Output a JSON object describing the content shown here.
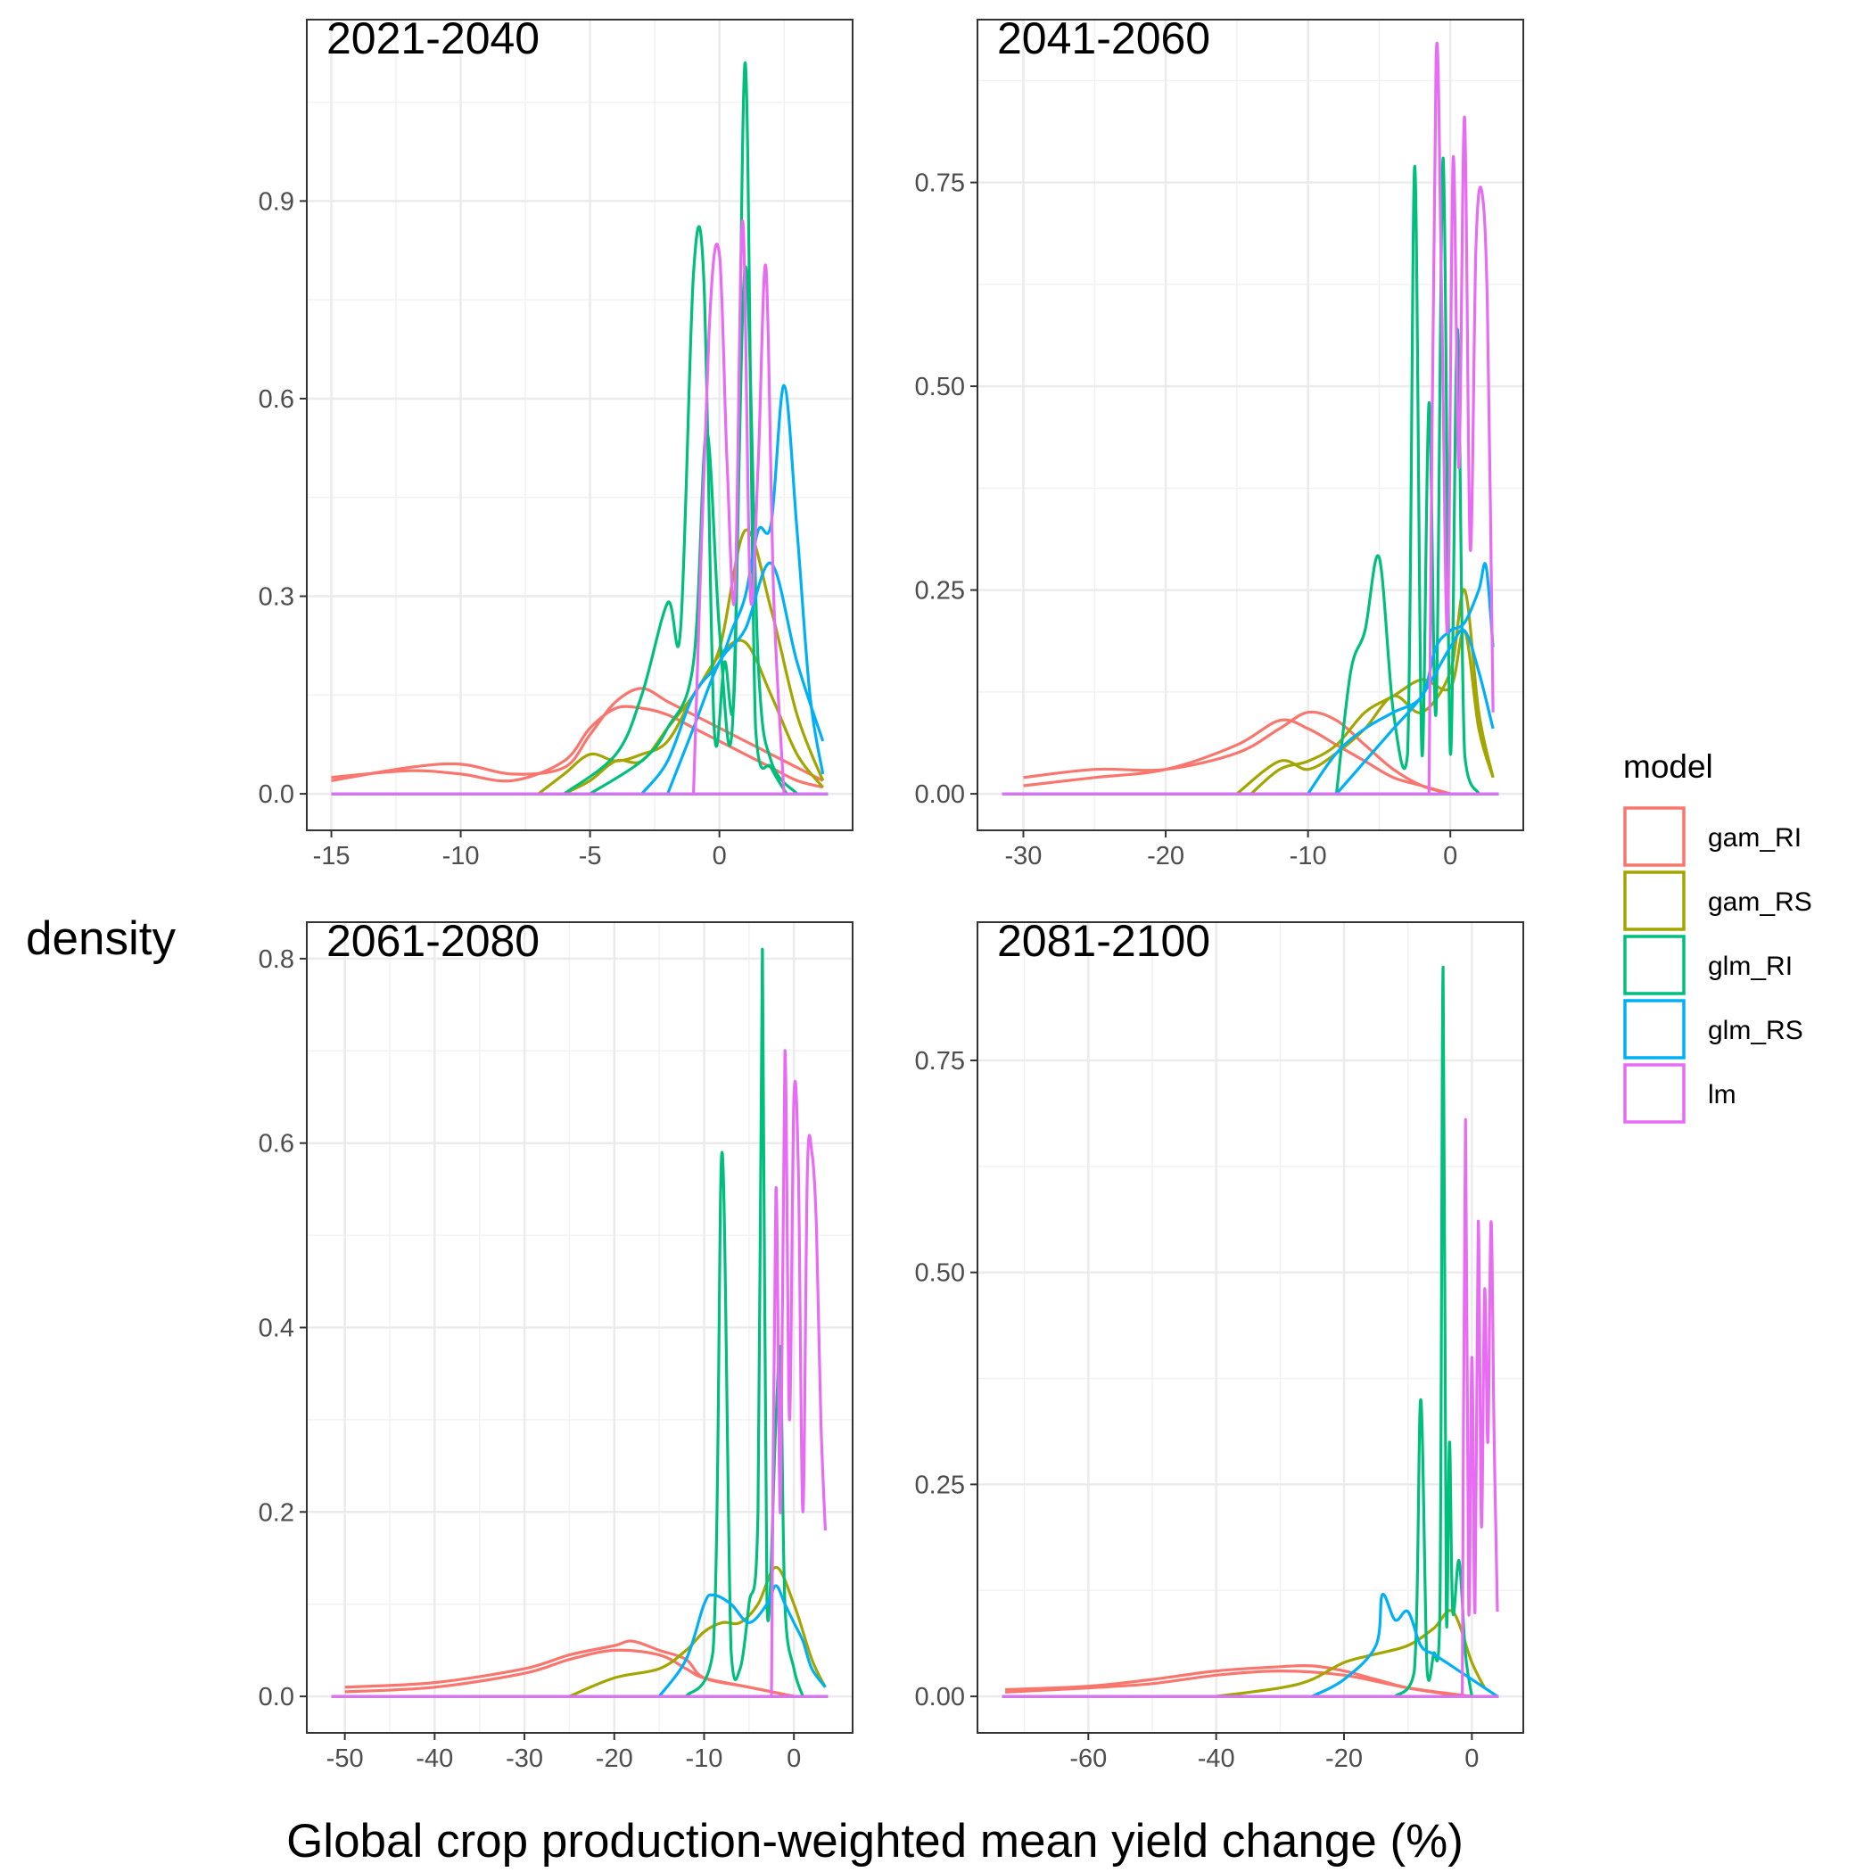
{
  "chart_data": {
    "type": "line",
    "xlabel": "Global crop production-weighted mean yield change (%)",
    "ylabel": "density",
    "legend": {
      "title": "model",
      "placement": "right",
      "entries": [
        {
          "name": "gam_RI",
          "color": "#F8766D"
        },
        {
          "name": "gam_RS",
          "color": "#A3A500"
        },
        {
          "name": "glm_RI",
          "color": "#00BF7D"
        },
        {
          "name": "glm_RS",
          "color": "#00B0F6"
        },
        {
          "name": "lm",
          "color": "#E76BF3"
        }
      ]
    },
    "grid": true,
    "panels": [
      {
        "label": "2021-2040",
        "xlim": [
          -15,
          4.2
        ],
        "ylim": [
          0,
          1.12
        ],
        "xticks": [
          -15,
          -10,
          -5,
          0
        ],
        "xtick_labels": [
          "-15",
          "-10",
          "-5",
          "0"
        ],
        "yticks": [
          0,
          0.3,
          0.6,
          0.9
        ],
        "ytick_labels": [
          "0.0",
          "0.3",
          "0.6",
          "0.9"
        ],
        "series": [
          {
            "model": "gam_RI",
            "x": [
              -15,
              -12,
              -10,
              -8,
              -6,
              -5,
              -4,
              -3,
              -2,
              -1,
              0,
              1,
              2,
              3,
              4
            ],
            "y": [
              0.02,
              0.04,
              0.045,
              0.03,
              0.04,
              0.09,
              0.14,
              0.16,
              0.14,
              0.12,
              0.1,
              0.08,
              0.06,
              0.04,
              0.02
            ]
          },
          {
            "model": "gam_RI",
            "x": [
              -15,
              -12,
              -10,
              -8,
              -6,
              -5,
              -4,
              -3,
              -2,
              -1,
              0,
              1,
              2,
              3,
              4
            ],
            "y": [
              0.025,
              0.035,
              0.03,
              0.02,
              0.05,
              0.1,
              0.13,
              0.13,
              0.12,
              0.1,
              0.08,
              0.06,
              0.04,
              0.02,
              0.01
            ]
          },
          {
            "model": "gam_RS",
            "x": [
              -7,
              -6,
              -5,
              -4,
              -3,
              -2,
              -1,
              0,
              1,
              2,
              3,
              4
            ],
            "y": [
              0.0,
              0.03,
              0.06,
              0.05,
              0.06,
              0.08,
              0.15,
              0.22,
              0.4,
              0.28,
              0.12,
              0.02
            ]
          },
          {
            "model": "gam_RS",
            "x": [
              -6,
              -5,
              -4,
              -3,
              -2,
              -1,
              0,
              1,
              2,
              3,
              4
            ],
            "y": [
              0.0,
              0.02,
              0.05,
              0.05,
              0.1,
              0.15,
              0.21,
              0.23,
              0.15,
              0.06,
              0.01
            ]
          },
          {
            "model": "glm_RI",
            "x": [
              -6,
              -4,
              -3,
              -2,
              -1.5,
              -1,
              -0.6,
              -0.2,
              0.2,
              0.6,
              1.0,
              1.4,
              2.0,
              2.6
            ],
            "y": [
              0.0,
              0.06,
              0.15,
              0.29,
              0.25,
              0.79,
              0.78,
              0.1,
              0.2,
              0.18,
              1.11,
              0.1,
              0.04,
              0.0
            ]
          },
          {
            "model": "glm_RI",
            "x": [
              -5,
              -3,
              -2,
              -1,
              -0.5,
              0,
              0.5,
              1,
              1.5,
              2,
              3
            ],
            "y": [
              0.0,
              0.05,
              0.1,
              0.2,
              0.55,
              0.25,
              0.1,
              0.8,
              0.2,
              0.05,
              0.0
            ]
          },
          {
            "model": "glm_RS",
            "x": [
              -3,
              -2,
              -1,
              0,
              0.5,
              1,
              1.5,
              2,
              2.5,
              3,
              3.5,
              4
            ],
            "y": [
              0.0,
              0.05,
              0.15,
              0.2,
              0.25,
              0.3,
              0.4,
              0.41,
              0.62,
              0.4,
              0.15,
              0.03
            ]
          },
          {
            "model": "glm_RS",
            "x": [
              -2,
              -1,
              0,
              1,
              2,
              3,
              4
            ],
            "y": [
              0.0,
              0.1,
              0.2,
              0.25,
              0.35,
              0.2,
              0.08
            ]
          },
          {
            "model": "lm",
            "x": [
              -1,
              -0.4,
              0,
              0.3,
              0.6,
              0.9,
              1.2,
              1.5,
              1.8,
              2.1,
              2.5
            ],
            "y": [
              0.0,
              0.7,
              0.82,
              0.5,
              0.3,
              0.87,
              0.3,
              0.5,
              0.8,
              0.3,
              0.0
            ]
          }
        ]
      },
      {
        "label": "2041-2060",
        "xlim": [
          -31.5,
          3.4
        ],
        "ylim": [
          0,
          0.905
        ],
        "xticks": [
          -30,
          -20,
          -10,
          0
        ],
        "xtick_labels": [
          "-30",
          "-20",
          "-10",
          "0"
        ],
        "yticks": [
          0,
          0.25,
          0.5,
          0.75
        ],
        "ytick_labels": [
          "0.00",
          "0.25",
          "0.50",
          "0.75"
        ],
        "series": [
          {
            "model": "gam_RI",
            "x": [
              -30,
              -25,
              -20,
              -15,
              -12,
              -10,
              -8,
              -6,
              -4,
              -2,
              0
            ],
            "y": [
              0.02,
              0.03,
              0.03,
              0.05,
              0.08,
              0.1,
              0.09,
              0.06,
              0.03,
              0.01,
              0.0
            ]
          },
          {
            "model": "gam_RI",
            "x": [
              -30,
              -25,
              -20,
              -15,
              -12,
              -10,
              -8,
              -6,
              -4,
              -2,
              0
            ],
            "y": [
              0.01,
              0.02,
              0.03,
              0.06,
              0.09,
              0.08,
              0.06,
              0.04,
              0.02,
              0.01,
              0.0
            ]
          },
          {
            "model": "gam_RS",
            "x": [
              -15,
              -12,
              -10,
              -8,
              -6,
              -4,
              -2,
              0,
              1,
              2,
              3
            ],
            "y": [
              0.0,
              0.04,
              0.03,
              0.05,
              0.08,
              0.12,
              0.1,
              0.15,
              0.25,
              0.1,
              0.02
            ]
          },
          {
            "model": "gam_RS",
            "x": [
              -14,
              -12,
              -10,
              -8,
              -6,
              -4,
              -2,
              0,
              1,
              2,
              3
            ],
            "y": [
              0.0,
              0.03,
              0.04,
              0.06,
              0.1,
              0.12,
              0.14,
              0.13,
              0.2,
              0.08,
              0.02
            ]
          },
          {
            "model": "glm_RI",
            "x": [
              -8,
              -7,
              -6,
              -5,
              -4,
              -3,
              -2.5,
              -2,
              -1.5,
              -1,
              -0.5,
              0,
              0.5,
              1,
              2
            ],
            "y": [
              0.0,
              0.15,
              0.2,
              0.29,
              0.1,
              0.05,
              0.77,
              0.05,
              0.48,
              0.1,
              0.78,
              0.05,
              0.57,
              0.05,
              0.0
            ]
          },
          {
            "model": "glm_RS",
            "x": [
              -10,
              -8,
              -6,
              -4,
              -2,
              -1,
              0,
              1,
              2,
              2.5,
              3
            ],
            "y": [
              0.0,
              0.05,
              0.08,
              0.1,
              0.12,
              0.18,
              0.2,
              0.21,
              0.25,
              0.28,
              0.18
            ]
          },
          {
            "model": "glm_RS",
            "x": [
              -8,
              -6,
              -4,
              -2,
              0,
              1,
              2,
              3
            ],
            "y": [
              0.0,
              0.04,
              0.08,
              0.12,
              0.18,
              0.2,
              0.15,
              0.08
            ]
          },
          {
            "model": "lm",
            "x": [
              -1.5,
              -1.0,
              -0.6,
              -0.2,
              0.2,
              0.6,
              1.0,
              1.4,
              1.8,
              2.2,
              2.6,
              3.0
            ],
            "y": [
              0.0,
              0.9,
              0.6,
              0.2,
              0.78,
              0.4,
              0.83,
              0.3,
              0.67,
              0.74,
              0.6,
              0.1
            ]
          }
        ]
      },
      {
        "label": "2061-2080",
        "xlim": [
          -51.5,
          3.8
        ],
        "ylim": [
          0,
          0.8
        ],
        "xticks": [
          -50,
          -40,
          -30,
          -20,
          -10,
          0
        ],
        "xtick_labels": [
          "-50",
          "-40",
          "-30",
          "-20",
          "-10",
          "0"
        ],
        "yticks": [
          0,
          0.2,
          0.4,
          0.6,
          0.8
        ],
        "ytick_labels": [
          "0.0",
          "0.2",
          "0.4",
          "0.6",
          "0.8"
        ],
        "series": [
          {
            "model": "gam_RI",
            "x": [
              -50,
              -40,
              -30,
              -25,
              -20,
              -18,
              -15,
              -12,
              -10,
              -5,
              0
            ],
            "y": [
              0.01,
              0.015,
              0.03,
              0.045,
              0.055,
              0.06,
              0.05,
              0.04,
              0.02,
              0.01,
              0.0
            ]
          },
          {
            "model": "gam_RI",
            "x": [
              -50,
              -40,
              -30,
              -25,
              -20,
              -15,
              -12,
              -10,
              -5,
              0
            ],
            "y": [
              0.005,
              0.01,
              0.025,
              0.04,
              0.05,
              0.045,
              0.03,
              0.02,
              0.01,
              0.0
            ]
          },
          {
            "model": "gam_RS",
            "x": [
              -25,
              -20,
              -15,
              -12,
              -10,
              -8,
              -6,
              -4,
              -2,
              0,
              2,
              3.5
            ],
            "y": [
              0.0,
              0.02,
              0.03,
              0.05,
              0.07,
              0.08,
              0.08,
              0.1,
              0.14,
              0.1,
              0.04,
              0.01
            ]
          },
          {
            "model": "glm_RI",
            "x": [
              -12,
              -9,
              -8,
              -7,
              -6,
              -5,
              -4,
              -3.5,
              -3,
              -2,
              -1.5,
              -1,
              0,
              1
            ],
            "y": [
              0.0,
              0.05,
              0.59,
              0.05,
              0.03,
              0.1,
              0.2,
              0.81,
              0.1,
              0.3,
              0.37,
              0.1,
              0.03,
              0.0
            ]
          },
          {
            "model": "glm_RS",
            "x": [
              -15,
              -12,
              -10,
              -9,
              -7,
              -5,
              -3,
              -2,
              -1,
              0,
              1,
              2,
              3.5
            ],
            "y": [
              0.0,
              0.04,
              0.1,
              0.11,
              0.1,
              0.08,
              0.1,
              0.12,
              0.1,
              0.08,
              0.06,
              0.03,
              0.01
            ]
          },
          {
            "model": "lm",
            "x": [
              -2.5,
              -2,
              -1.5,
              -1,
              -0.5,
              0,
              0.5,
              1,
              1.5,
              2,
              2.5,
              3,
              3.5
            ],
            "y": [
              0.0,
              0.55,
              0.2,
              0.7,
              0.3,
              0.65,
              0.57,
              0.2,
              0.57,
              0.59,
              0.51,
              0.3,
              0.18
            ]
          }
        ]
      },
      {
        "label": "2081-2100",
        "xlim": [
          -73.5,
          4.2
        ],
        "ylim": [
          0,
          0.87
        ],
        "xticks": [
          -60,
          -40,
          -20,
          0
        ],
        "xtick_labels": [
          "-60",
          "-40",
          "-20",
          "0"
        ],
        "yticks": [
          0,
          0.25,
          0.5,
          0.75
        ],
        "ytick_labels": [
          "0.00",
          "0.25",
          "0.50",
          "0.75"
        ],
        "series": [
          {
            "model": "gam_RI",
            "x": [
              -73,
              -60,
              -50,
              -40,
              -30,
              -25,
              -20,
              -15,
              -10,
              -5,
              0
            ],
            "y": [
              0.008,
              0.012,
              0.02,
              0.03,
              0.035,
              0.036,
              0.03,
              0.02,
              0.01,
              0.004,
              0.0
            ]
          },
          {
            "model": "gam_RI",
            "x": [
              -73,
              -60,
              -50,
              -40,
              -30,
              -20,
              -10,
              0
            ],
            "y": [
              0.005,
              0.01,
              0.015,
              0.025,
              0.03,
              0.025,
              0.01,
              0.0
            ]
          },
          {
            "model": "gam_RS",
            "x": [
              -40,
              -30,
              -25,
              -20,
              -15,
              -10,
              -6,
              -3,
              0,
              2
            ],
            "y": [
              0.0,
              0.01,
              0.02,
              0.04,
              0.05,
              0.06,
              0.08,
              0.1,
              0.04,
              0.01
            ]
          },
          {
            "model": "glm_RI",
            "x": [
              -12,
              -9,
              -8,
              -7,
              -6,
              -5,
              -4.5,
              -4,
              -3.5,
              -3,
              -2,
              -1,
              0
            ],
            "y": [
              0.0,
              0.03,
              0.35,
              0.03,
              0.05,
              0.1,
              0.86,
              0.1,
              0.3,
              0.1,
              0.16,
              0.05,
              0.0
            ]
          },
          {
            "model": "glm_RS",
            "x": [
              -25,
              -20,
              -15,
              -14,
              -12,
              -10,
              -8,
              -6,
              -4,
              -2,
              0,
              2,
              4
            ],
            "y": [
              0.0,
              0.02,
              0.06,
              0.12,
              0.09,
              0.1,
              0.06,
              0.05,
              0.04,
              0.03,
              0.02,
              0.01,
              0.0
            ]
          },
          {
            "model": "lm",
            "x": [
              -1.5,
              -1,
              -0.5,
              0,
              0.5,
              1,
              1.5,
              2,
              2.5,
              3,
              3.5,
              4
            ],
            "y": [
              0.0,
              0.68,
              0.1,
              0.4,
              0.1,
              0.56,
              0.2,
              0.48,
              0.3,
              0.56,
              0.3,
              0.1
            ]
          }
        ]
      }
    ]
  }
}
